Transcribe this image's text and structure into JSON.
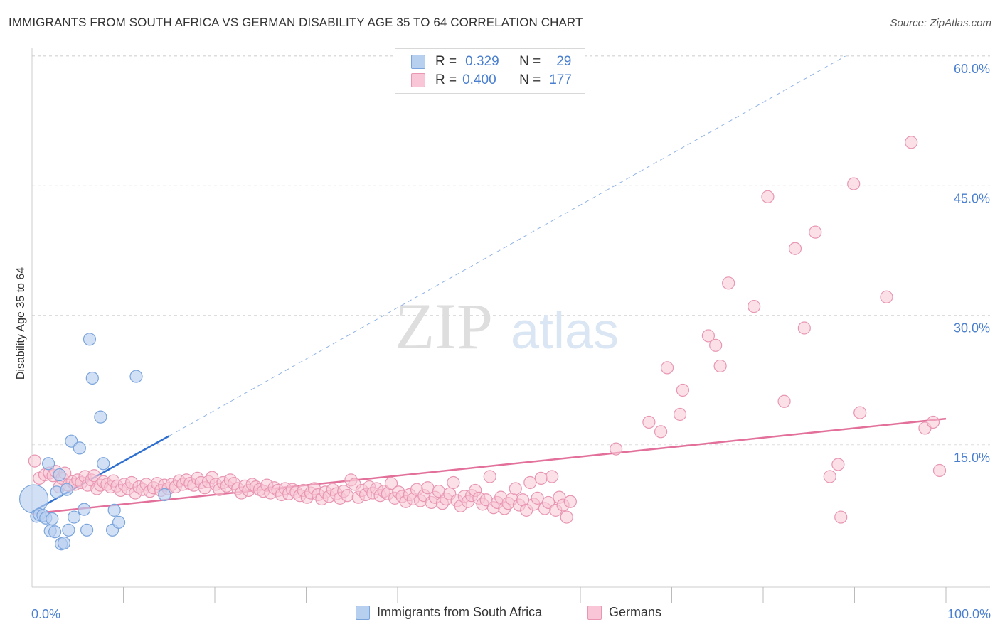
{
  "title": "IMMIGRANTS FROM SOUTH AFRICA VS GERMAN DISABILITY AGE 35 TO 64 CORRELATION CHART",
  "source": "Source: ZipAtlas.com",
  "watermark": {
    "part1": "ZIP",
    "part2": "atlas"
  },
  "colors": {
    "blue_fill": "#b8d0f0",
    "blue_stroke": "#7aa4dc",
    "blue_line": "#2f6fcf",
    "pink_fill": "#f8c6d6",
    "pink_stroke": "#e896b2",
    "pink_line": "#e2709a",
    "tick_label": "#4a7fd0",
    "grid": "#dddddd"
  },
  "stats": {
    "rows": [
      {
        "r_label": "R =",
        "r_value": "0.329",
        "n_label": "N =",
        "n_value": "29"
      },
      {
        "r_label": "R =",
        "r_value": "0.400",
        "n_label": "N =",
        "n_value": "177"
      }
    ]
  },
  "chart_data": {
    "type": "scatter",
    "title": "IMMIGRANTS FROM SOUTH AFRICA VS GERMAN DISABILITY AGE 35 TO 64 CORRELATION CHART",
    "xlabel": "",
    "ylabel": "Disability Age 35 to 64",
    "xlim": [
      0,
      100
    ],
    "ylim": [
      0,
      60
    ],
    "x_tick_labels": {
      "0": "0.0%",
      "100": "100.0%"
    },
    "y_tick_labels": [
      {
        "value": 15,
        "label": "15.0%"
      },
      {
        "value": 30,
        "label": "30.0%"
      },
      {
        "value": 45,
        "label": "45.0%"
      },
      {
        "value": 60,
        "label": "60.0%"
      }
    ],
    "x_minor_ticks": [
      10,
      20,
      30,
      40,
      50,
      60,
      70,
      80,
      90,
      100
    ],
    "grid": "horizontal dashed",
    "legend": {
      "placement": "bottom"
    },
    "series": [
      {
        "name": "Immigrants from South Africa",
        "color": "#b8d0f0",
        "points": [
          [
            0.2,
            10.2
          ],
          [
            0.5,
            8.2
          ],
          [
            0.8,
            8.4
          ],
          [
            1.2,
            8.3
          ],
          [
            1.5,
            8.0
          ],
          [
            1.8,
            14.3
          ],
          [
            2.0,
            6.5
          ],
          [
            2.2,
            7.9
          ],
          [
            2.5,
            6.4
          ],
          [
            2.7,
            11.0
          ],
          [
            3.0,
            13.0
          ],
          [
            3.2,
            5.0
          ],
          [
            3.5,
            5.1
          ],
          [
            3.8,
            11.3
          ],
          [
            4.0,
            6.6
          ],
          [
            4.3,
            16.9
          ],
          [
            4.6,
            8.1
          ],
          [
            5.2,
            16.1
          ],
          [
            5.7,
            9.0
          ],
          [
            6.0,
            6.6
          ],
          [
            6.3,
            28.7
          ],
          [
            6.6,
            24.2
          ],
          [
            7.5,
            19.7
          ],
          [
            7.8,
            14.3
          ],
          [
            8.8,
            6.6
          ],
          [
            9.0,
            8.9
          ],
          [
            9.5,
            7.5
          ],
          [
            11.4,
            24.4
          ],
          [
            14.5,
            10.7
          ]
        ],
        "trend": {
          "x0": 0,
          "y0": 8.7,
          "x1": 15,
          "y1": 17.5,
          "extended_to": {
            "x": 89,
            "y": 60
          }
        }
      },
      {
        "name": "Germans",
        "color": "#f8c6d6",
        "points": [
          [
            0.3,
            14.6
          ],
          [
            0.8,
            12.6
          ],
          [
            1.4,
            13.0
          ],
          [
            1.9,
            13.2
          ],
          [
            2.3,
            12.9
          ],
          [
            2.6,
            13.4
          ],
          [
            3.0,
            11.6
          ],
          [
            3.3,
            12.6
          ],
          [
            3.6,
            13.2
          ],
          [
            4.0,
            11.8
          ],
          [
            4.4,
            12.2
          ],
          [
            4.7,
            11.9
          ],
          [
            5.0,
            12.4
          ],
          [
            5.4,
            12.1
          ],
          [
            5.8,
            12.8
          ],
          [
            6.1,
            11.8
          ],
          [
            6.5,
            12.4
          ],
          [
            6.8,
            12.9
          ],
          [
            7.1,
            11.4
          ],
          [
            7.5,
            11.8
          ],
          [
            7.8,
            12.2
          ],
          [
            8.2,
            11.9
          ],
          [
            8.6,
            11.6
          ],
          [
            8.9,
            12.3
          ],
          [
            9.3,
            11.7
          ],
          [
            9.7,
            11.2
          ],
          [
            10.1,
            11.9
          ],
          [
            10.5,
            11.4
          ],
          [
            10.9,
            12.1
          ],
          [
            11.3,
            10.9
          ],
          [
            11.7,
            11.6
          ],
          [
            12.1,
            11.3
          ],
          [
            12.5,
            11.9
          ],
          [
            12.9,
            11.1
          ],
          [
            13.3,
            11.5
          ],
          [
            13.7,
            12.0
          ],
          [
            14.1,
            11.2
          ],
          [
            14.5,
            11.8
          ],
          [
            14.9,
            11.4
          ],
          [
            15.3,
            11.9
          ],
          [
            15.7,
            11.6
          ],
          [
            16.1,
            12.3
          ],
          [
            16.5,
            11.9
          ],
          [
            16.9,
            12.4
          ],
          [
            17.3,
            12.0
          ],
          [
            17.7,
            11.8
          ],
          [
            18.1,
            12.6
          ],
          [
            18.5,
            12.1
          ],
          [
            18.9,
            11.5
          ],
          [
            19.3,
            12.2
          ],
          [
            19.7,
            12.7
          ],
          [
            20.1,
            11.9
          ],
          [
            20.5,
            11.3
          ],
          [
            20.9,
            12.1
          ],
          [
            21.3,
            11.7
          ],
          [
            21.7,
            12.4
          ],
          [
            22.1,
            12.0
          ],
          [
            22.5,
            11.4
          ],
          [
            22.9,
            10.9
          ],
          [
            23.3,
            11.7
          ],
          [
            23.7,
            11.2
          ],
          [
            24.1,
            11.9
          ],
          [
            24.5,
            11.6
          ],
          [
            24.9,
            11.3
          ],
          [
            25.3,
            11.1
          ],
          [
            25.7,
            11.8
          ],
          [
            26.1,
            10.9
          ],
          [
            26.5,
            11.5
          ],
          [
            26.9,
            11.2
          ],
          [
            27.3,
            10.7
          ],
          [
            27.7,
            11.4
          ],
          [
            28.1,
            10.8
          ],
          [
            28.5,
            11.3
          ],
          [
            28.9,
            11.0
          ],
          [
            29.3,
            10.6
          ],
          [
            29.7,
            11.2
          ],
          [
            30.1,
            10.4
          ],
          [
            30.5,
            10.9
          ],
          [
            30.9,
            11.4
          ],
          [
            31.3,
            10.7
          ],
          [
            31.7,
            10.2
          ],
          [
            32.1,
            11.0
          ],
          [
            32.5,
            10.5
          ],
          [
            32.9,
            11.3
          ],
          [
            33.3,
            10.8
          ],
          [
            33.7,
            10.3
          ],
          [
            34.1,
            11.1
          ],
          [
            34.5,
            10.6
          ],
          [
            34.9,
            12.4
          ],
          [
            35.3,
            11.9
          ],
          [
            35.7,
            10.4
          ],
          [
            36.1,
            11.2
          ],
          [
            36.5,
            10.7
          ],
          [
            36.9,
            11.6
          ],
          [
            37.3,
            10.9
          ],
          [
            37.7,
            11.4
          ],
          [
            38.1,
            10.6
          ],
          [
            38.5,
            11.1
          ],
          [
            38.9,
            10.8
          ],
          [
            39.3,
            12.0
          ],
          [
            39.7,
            10.3
          ],
          [
            40.1,
            11.0
          ],
          [
            40.5,
            10.5
          ],
          [
            40.9,
            9.9
          ],
          [
            41.3,
            10.7
          ],
          [
            41.7,
            10.2
          ],
          [
            42.1,
            11.3
          ],
          [
            42.5,
            10.0
          ],
          [
            42.9,
            10.6
          ],
          [
            43.3,
            11.5
          ],
          [
            43.7,
            9.8
          ],
          [
            44.1,
            10.4
          ],
          [
            44.5,
            11.1
          ],
          [
            44.9,
            9.7
          ],
          [
            45.3,
            10.2
          ],
          [
            45.7,
            10.8
          ],
          [
            46.1,
            12.1
          ],
          [
            46.5,
            10.0
          ],
          [
            46.9,
            9.4
          ],
          [
            47.3,
            10.5
          ],
          [
            47.7,
            9.9
          ],
          [
            48.1,
            10.6
          ],
          [
            48.5,
            11.2
          ],
          [
            48.9,
            10.3
          ],
          [
            49.3,
            9.6
          ],
          [
            49.7,
            10.1
          ],
          [
            50.1,
            12.8
          ],
          [
            50.5,
            9.2
          ],
          [
            50.9,
            9.8
          ],
          [
            51.3,
            10.4
          ],
          [
            51.7,
            9.1
          ],
          [
            52.1,
            9.7
          ],
          [
            52.5,
            10.2
          ],
          [
            52.9,
            11.4
          ],
          [
            53.3,
            9.5
          ],
          [
            53.7,
            10.1
          ],
          [
            54.1,
            8.9
          ],
          [
            54.5,
            12.1
          ],
          [
            54.9,
            9.6
          ],
          [
            55.3,
            10.3
          ],
          [
            55.7,
            12.6
          ],
          [
            56.1,
            9.1
          ],
          [
            56.5,
            9.8
          ],
          [
            56.9,
            12.8
          ],
          [
            57.3,
            8.9
          ],
          [
            57.7,
            10.4
          ],
          [
            58.1,
            9.5
          ],
          [
            58.5,
            8.1
          ],
          [
            58.9,
            9.9
          ],
          [
            63.9,
            16.0
          ],
          [
            69.5,
            25.4
          ],
          [
            71.2,
            22.8
          ],
          [
            74.0,
            29.1
          ],
          [
            75.3,
            25.6
          ],
          [
            74.8,
            28.0
          ],
          [
            76.2,
            35.2
          ],
          [
            79.0,
            32.5
          ],
          [
            80.5,
            45.2
          ],
          [
            82.3,
            21.5
          ],
          [
            83.5,
            39.2
          ],
          [
            84.5,
            30.0
          ],
          [
            85.7,
            41.1
          ],
          [
            87.3,
            12.8
          ],
          [
            88.2,
            14.2
          ],
          [
            88.5,
            8.1
          ],
          [
            89.9,
            46.7
          ],
          [
            90.6,
            20.2
          ],
          [
            93.5,
            33.6
          ],
          [
            96.2,
            51.5
          ],
          [
            97.7,
            18.4
          ],
          [
            98.6,
            19.1
          ],
          [
            99.3,
            13.5
          ],
          [
            67.5,
            19.1
          ],
          [
            68.8,
            18.0
          ],
          [
            70.9,
            20.0
          ]
        ],
        "trend": {
          "x0": 0,
          "y0": 8.5,
          "x1": 100,
          "y1": 19.5
        }
      }
    ]
  },
  "legend_bottom": [
    {
      "label": "Immigrants from South Africa"
    },
    {
      "label": "Germans"
    }
  ]
}
